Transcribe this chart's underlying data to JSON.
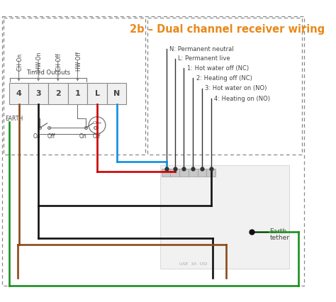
{
  "title": "2b – Dual channel receiver wiring",
  "title_color": "#E8891A",
  "title_fontsize": 10.5,
  "bg_color": "#ffffff",
  "terminal_labels": [
    "4",
    "3",
    "2",
    "1",
    "L",
    "N"
  ],
  "timed_labels": [
    "CH On",
    "HW On",
    "CH Off",
    "HW Off"
  ],
  "connector_labels": [
    "N: Permanent neutral",
    "L: Permanent live",
    "1: Hot water off (NC)",
    "2: Heating off (NC)",
    "3: Hot water on (NO)",
    "4: Heating on (NO)"
  ],
  "text_color": "#444444",
  "dash_color": "#777777",
  "term_fill": "#f0f0f0",
  "term_edge": "#888888",
  "wire_brown": "#8B4A18",
  "wire_black": "#111111",
  "wire_red": "#CC0000",
  "wire_blue": "#1090DD",
  "wire_green": "#1A9020",
  "lw": 1.9,
  "switch_color": "#666666",
  "receiver_fill": "#e0e0e0",
  "receiver_edge": "#bbbbbb"
}
